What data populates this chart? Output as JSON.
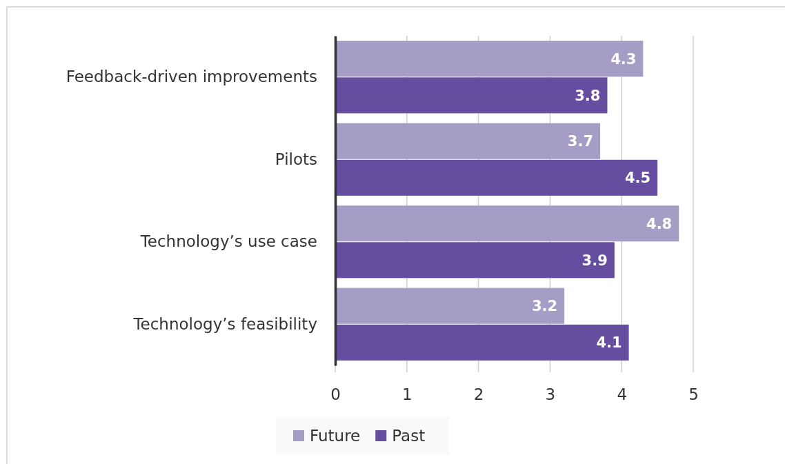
{
  "chart_data": {
    "type": "bar",
    "orientation": "horizontal",
    "categories": [
      "Feedback-driven improvements",
      "Pilots",
      "Technology’s use case",
      "Technology’s feasibility"
    ],
    "series": [
      {
        "name": "Future",
        "color": "#a59dc6",
        "values": [
          4.3,
          3.7,
          4.8,
          3.2
        ]
      },
      {
        "name": "Past",
        "color": "#654ea0",
        "values": [
          3.8,
          4.5,
          3.9,
          4.1
        ]
      }
    ],
    "xlim": [
      0,
      5
    ],
    "xticks": [
      0,
      1,
      2,
      3,
      4,
      5
    ],
    "grid": "x",
    "legend": "bottom",
    "data_labels": true
  }
}
